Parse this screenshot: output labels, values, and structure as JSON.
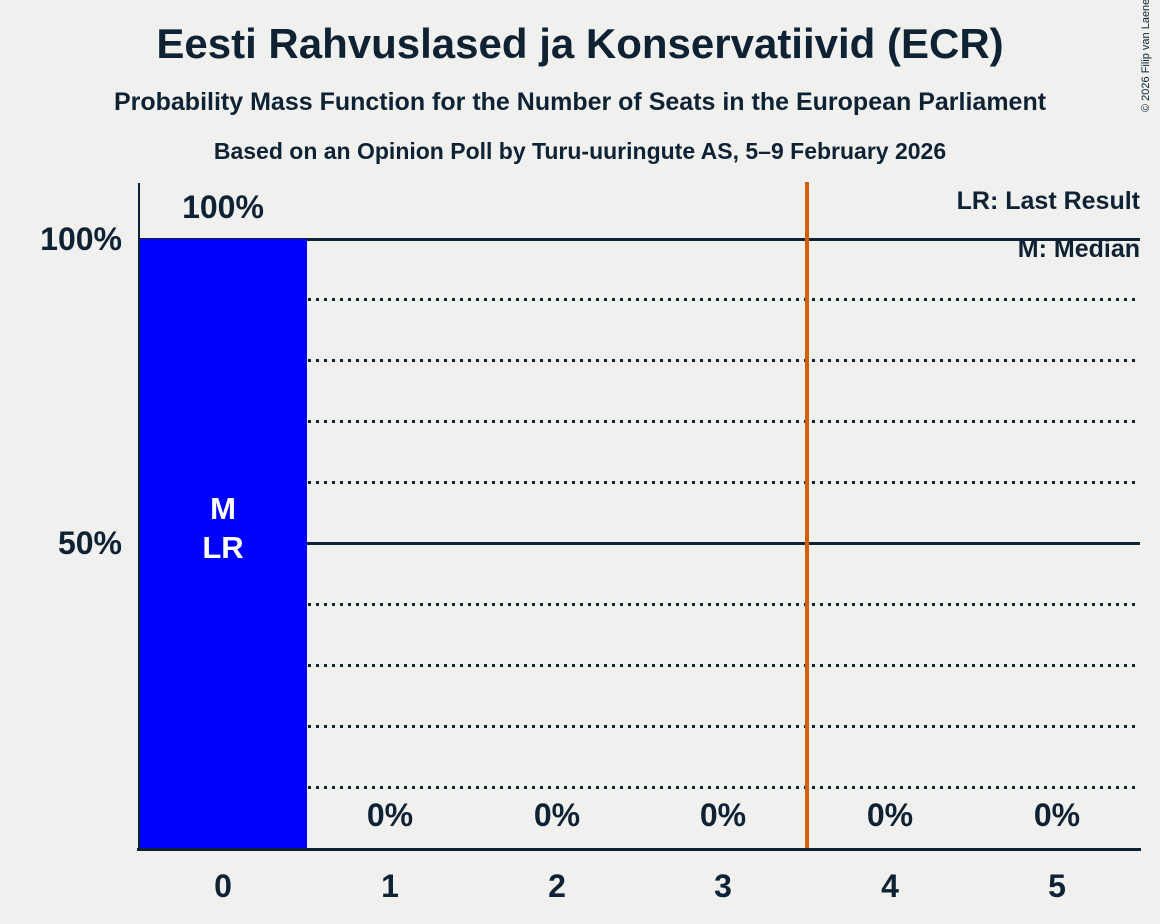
{
  "header": {
    "title": "Eesti Rahvuslased ja Konservatiivid (ECR)",
    "subtitle": "Probability Mass Function for the Number of Seats in the European Parliament",
    "source_line": "Based on an Opinion Poll by Turu-uuringute AS, 5–9 February 2026",
    "copyright": "© 2026 Filip van Laenen"
  },
  "legend": {
    "last_result": "LR: Last Result",
    "median": "M: Median"
  },
  "y_axis": {
    "tick_100": "100%",
    "tick_50": "50%"
  },
  "bar_annotations": {
    "median": "M",
    "last_result": "LR"
  },
  "chart_data": {
    "type": "bar",
    "title": "Eesti Rahvuslased ja Konservatiivid (ECR)",
    "subtitle": "Probability Mass Function for the Number of Seats in the European Parliament",
    "source": "Based on an Opinion Poll by Turu-uuringute AS, 5–9 February 2026",
    "categories": [
      "0",
      "1",
      "2",
      "3",
      "4",
      "5"
    ],
    "values": [
      100,
      0,
      0,
      0,
      0,
      0
    ],
    "value_labels": [
      "100%",
      "0%",
      "0%",
      "0%",
      "0%",
      "0%"
    ],
    "ylim": [
      0,
      100
    ],
    "y_tick_labels": [
      "100%",
      "50%"
    ],
    "gridlines_solid": [
      100,
      50
    ],
    "gridlines_dotted": [
      90,
      80,
      70,
      60,
      40,
      30,
      20,
      10
    ],
    "bar_color": "#0000ff",
    "text_color": "#0e2233",
    "background_color": "#f0f0ee",
    "vline_color": "#d2600a",
    "vline_position": 3.5,
    "median_category": "0",
    "last_result_category": "0",
    "legend_position": "top-right"
  }
}
